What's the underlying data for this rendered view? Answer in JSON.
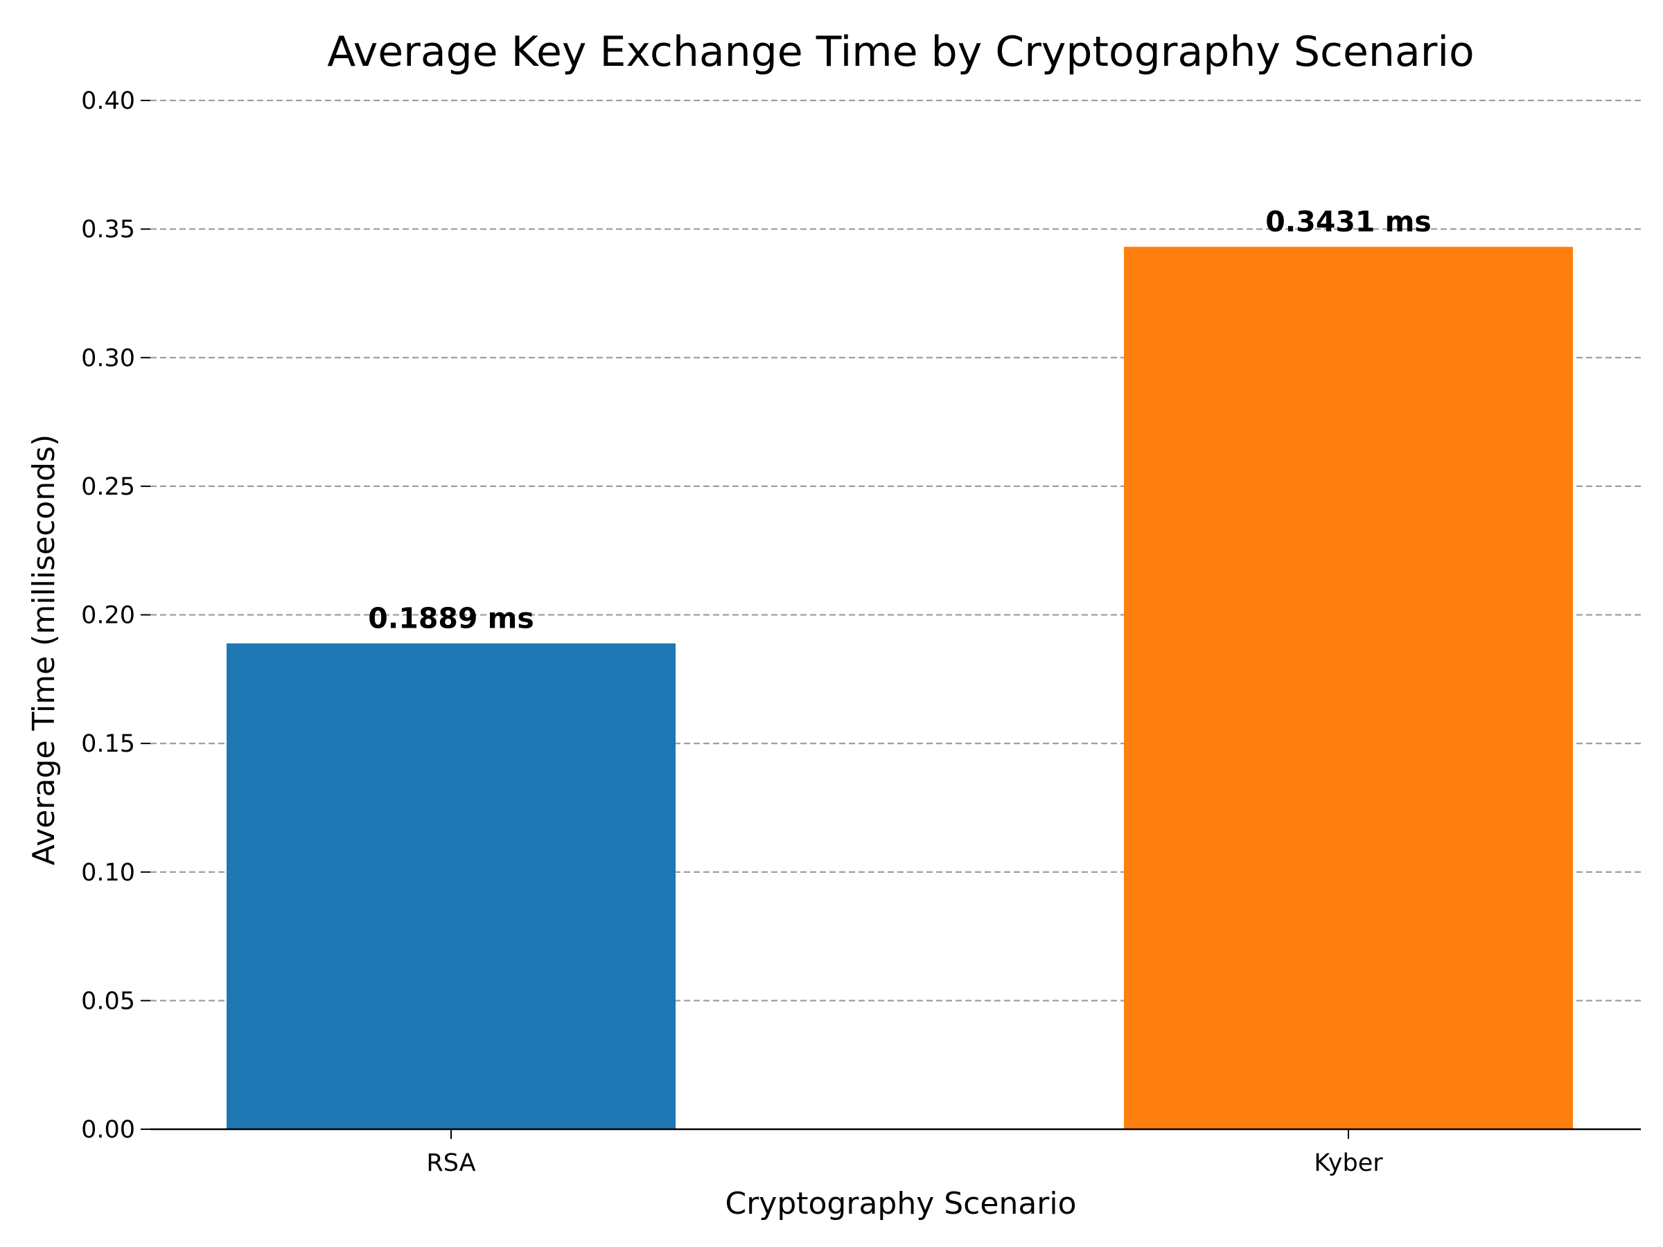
{
  "chart_data": {
    "type": "bar",
    "title": "Average Key Exchange Time by Cryptography Scenario",
    "xlabel": "Cryptography Scenario",
    "ylabel": "Average Time (milliseconds)",
    "categories": [
      "RSA",
      "Kyber"
    ],
    "values": [
      0.1889,
      0.3431
    ],
    "value_labels": [
      "0.1889 ms",
      "0.3431 ms"
    ],
    "colors": [
      "#1f77b4",
      "#ff7f0e"
    ],
    "ylim": [
      0,
      0.4
    ],
    "yticks": [
      0.0,
      0.05,
      0.1,
      0.15,
      0.2,
      0.25,
      0.3,
      0.35,
      0.4
    ],
    "ytick_labels": [
      "0.00",
      "0.05",
      "0.10",
      "0.15",
      "0.20",
      "0.25",
      "0.30",
      "0.35",
      "0.40"
    ],
    "grid": "y-dashed",
    "legend": "none"
  }
}
